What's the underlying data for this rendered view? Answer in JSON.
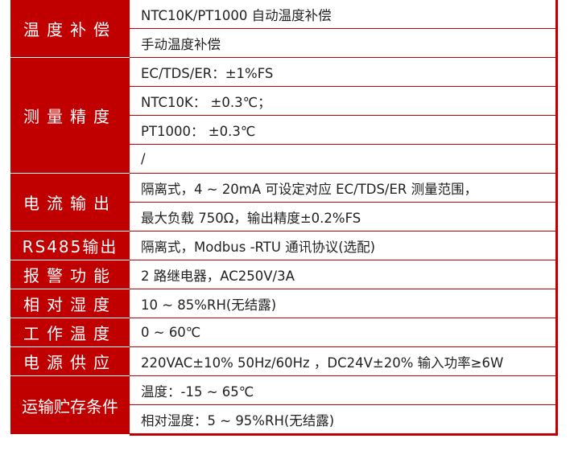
{
  "accent_color": "#c00000",
  "groups": [
    {
      "label": "温度补偿",
      "values": [
        "NTC10K/PT1000 自动温度补偿",
        "手动温度补偿"
      ]
    },
    {
      "label": "测量精度",
      "values": [
        "EC/TDS/ER：±1%FS",
        "NTC10K： ±0.3℃；",
        "PT1000： ±0.3℃",
        "/"
      ]
    },
    {
      "label": "电流输出",
      "values": [
        "隔离式，4 ~ 20mA 可设定对应 EC/TDS/ER 测量范围，",
        "最大负载 750Ω，输出精度±0.2%FS"
      ]
    },
    {
      "label": "RS485输出",
      "values": [
        "隔离式，Modbus -RTU 通讯协议(选配)"
      ]
    },
    {
      "label": "报警功能",
      "values": [
        "2 路继电器，AC250V/3A"
      ]
    },
    {
      "label": "相对湿度",
      "values": [
        "10 ~ 85%RH(无结露)"
      ]
    },
    {
      "label": "工作温度",
      "values": [
        "0 ~ 60℃"
      ]
    },
    {
      "label": "电源供应",
      "values": [
        "220VAC±10% 50Hz/60Hz ，DC24V±20% 输入功率≥6W"
      ]
    },
    {
      "label": "运输贮存条件",
      "values": [
        "温度：-15 ~ 65℃",
        "相对湿度：5 ~ 95%RH(无结露)"
      ]
    }
  ]
}
